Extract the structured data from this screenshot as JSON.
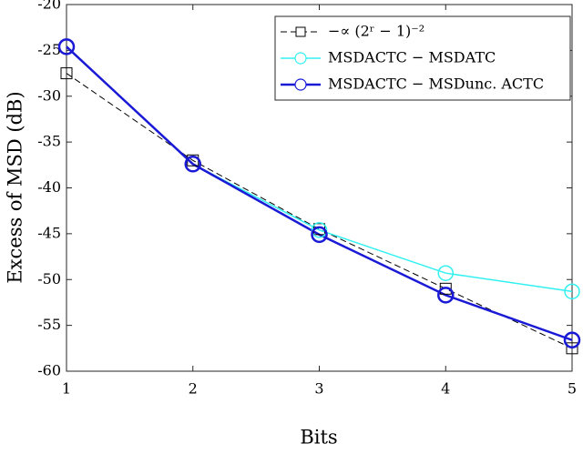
{
  "chart_data": {
    "type": "line",
    "x_label": "Bits",
    "y_label": "Excess of MSD (dB)",
    "x": [
      1,
      2,
      3,
      4,
      5
    ],
    "series": [
      {
        "name": "−∝ (2ʳ − 1)⁻²",
        "color": "#000000",
        "dashed": true,
        "marker": "square",
        "values": [
          -27.5,
          -37.0,
          -44.5,
          -51.0,
          -57.5
        ]
      },
      {
        "name": "MSDACTC − MSDATC",
        "color": "#33f0f0",
        "dashed": false,
        "marker": "circle",
        "values": [
          -24.6,
          -37.4,
          -44.6,
          -49.3,
          -51.3
        ]
      },
      {
        "name": "MSDACTC − MSDunc. ACTC",
        "color": "#1a1ad6",
        "dashed": false,
        "marker": "circle",
        "values": [
          -24.6,
          -37.4,
          -45.1,
          -51.7,
          -56.6
        ]
      }
    ],
    "xlim": [
      1,
      5
    ],
    "xticks": [
      1,
      2,
      3,
      4,
      5
    ],
    "ylim": [
      -60,
      -20
    ],
    "yticks": [
      -60,
      -55,
      -50,
      -45,
      -40,
      -35,
      -30,
      -25,
      -20
    ],
    "grid": false,
    "legend": "upper right"
  }
}
